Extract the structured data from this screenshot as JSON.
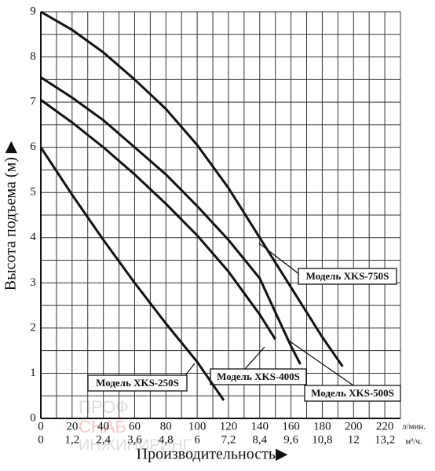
{
  "chart_data": {
    "type": "line",
    "ylabel": "Высота подъема (м) ▶",
    "xlabel": "Производительность▶",
    "xunit": "л/мин.",
    "x2unit": "м³/ч.",
    "xlim": [
      0,
      230
    ],
    "ylim": [
      0,
      9
    ],
    "x2lim": [
      0,
      13.8
    ],
    "xticks": [
      0,
      20,
      40,
      60,
      80,
      100,
      120,
      140,
      160,
      180,
      200,
      220
    ],
    "x2ticks": [
      0,
      {
        "value": 1.2,
        "label": "1,2"
      },
      {
        "value": 2.4,
        "label": "2,4"
      },
      {
        "value": 3.6,
        "label": "3,6"
      },
      {
        "value": 4.8,
        "label": "4,8"
      },
      6,
      {
        "value": 7.2,
        "label": "7,2"
      },
      {
        "value": 8.4,
        "label": "8,4"
      },
      {
        "value": 9.6,
        "label": "9,6"
      },
      {
        "value": 10.8,
        "label": "10,8"
      },
      12,
      {
        "value": 13.2,
        "label": "13,2"
      }
    ],
    "yticks": [
      0,
      1,
      2,
      3,
      4,
      5,
      6,
      7,
      8,
      9
    ],
    "xgrid": [
      0,
      10,
      20,
      30,
      40,
      50,
      60,
      70,
      80,
      90,
      100,
      110,
      120,
      130,
      140,
      150,
      160,
      170,
      180,
      190,
      200,
      210,
      220,
      230
    ],
    "ygrid": [
      0,
      0.5,
      1,
      1.5,
      2,
      2.5,
      3,
      3.5,
      4,
      4.5,
      5,
      5.5,
      6,
      6.5,
      7,
      7.5,
      8,
      8.5,
      9
    ],
    "grid": true,
    "series": [
      {
        "name": "Модель XKS-750S",
        "color": "#111111",
        "x": [
          0,
          20,
          40,
          60,
          80,
          100,
          120,
          140,
          160,
          180,
          193
        ],
        "values": [
          9,
          8.6,
          8.1,
          7.5,
          6.85,
          6.05,
          5.1,
          4.0,
          2.9,
          1.8,
          1.15
        ]
      },
      {
        "name": "Модель XKS-400S",
        "color": "#111111",
        "x": [
          0,
          20,
          40,
          60,
          80,
          100,
          120,
          140,
          150
        ],
        "values": [
          7.05,
          6.55,
          6.0,
          5.4,
          4.75,
          4.05,
          3.25,
          2.3,
          1.75
        ]
      },
      {
        "name": "Модель XKS-500S",
        "color": "#111111",
        "x": [
          0,
          20,
          40,
          60,
          80,
          100,
          120,
          140,
          160,
          166
        ],
        "values": [
          7.55,
          7.1,
          6.6,
          6.0,
          5.4,
          4.7,
          3.95,
          3.1,
          1.6,
          1.2
        ]
      },
      {
        "name": "Модель XKS-250S",
        "color": "#111111",
        "x": [
          0,
          20,
          40,
          60,
          80,
          100,
          117
        ],
        "values": [
          6.0,
          4.95,
          3.95,
          3.0,
          2.1,
          1.25,
          0.4
        ]
      }
    ],
    "watermark": [
      "ПРОФ",
      "СНАБ",
      "ИНЖИНИРИНГ"
    ]
  }
}
